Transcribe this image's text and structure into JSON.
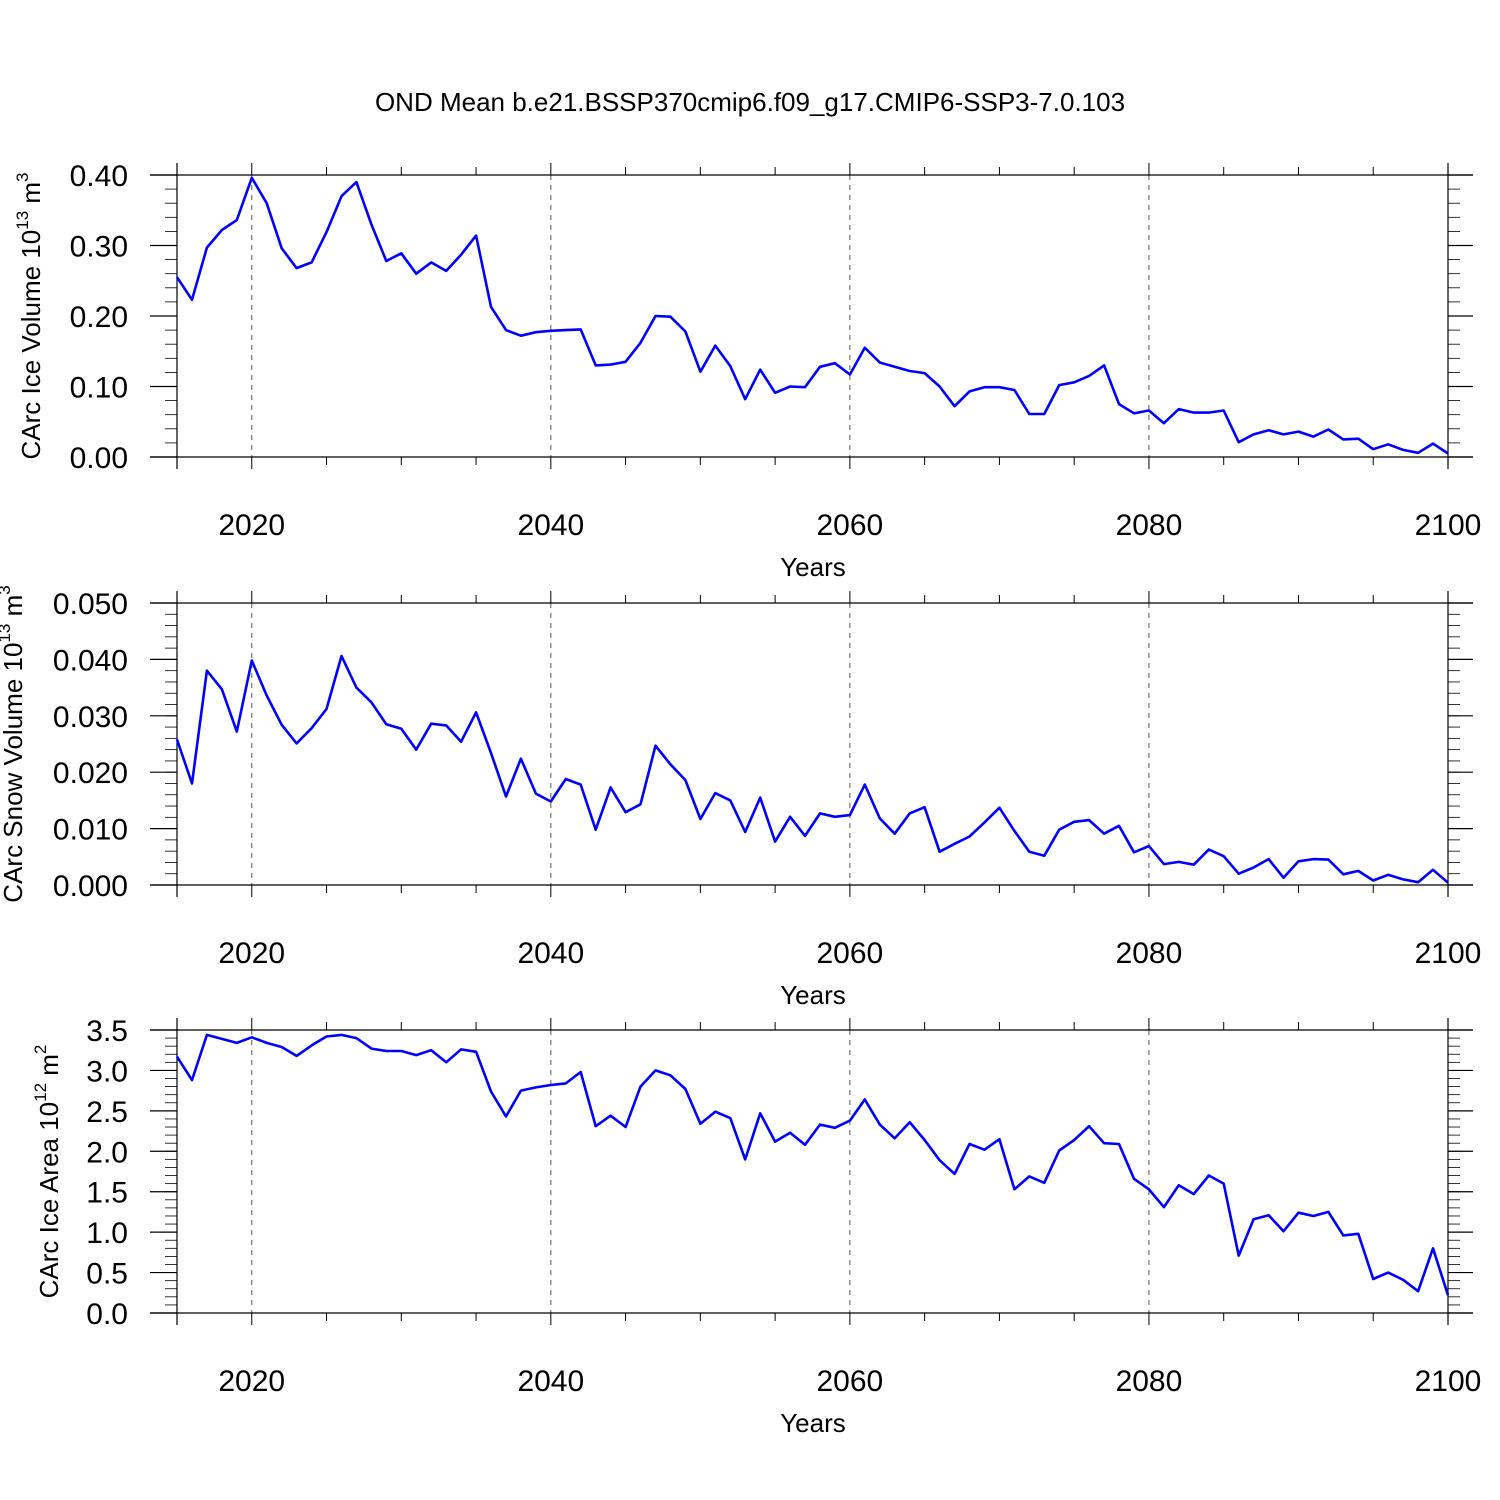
{
  "chart_data": {
    "title": "OND Mean b.e21.BSSP370cmip6.f09_g17.CMIP6-SSP3-7.0.103",
    "line_color": "#0000ff",
    "years": [
      2015,
      2016,
      2017,
      2018,
      2019,
      2020,
      2021,
      2022,
      2023,
      2024,
      2025,
      2026,
      2027,
      2028,
      2029,
      2030,
      2031,
      2032,
      2033,
      2034,
      2035,
      2036,
      2037,
      2038,
      2039,
      2040,
      2041,
      2042,
      2043,
      2044,
      2045,
      2046,
      2047,
      2048,
      2049,
      2050,
      2051,
      2052,
      2053,
      2054,
      2055,
      2056,
      2057,
      2058,
      2059,
      2060,
      2061,
      2062,
      2063,
      2064,
      2065,
      2066,
      2067,
      2068,
      2069,
      2070,
      2071,
      2072,
      2073,
      2074,
      2075,
      2076,
      2077,
      2078,
      2079,
      2080,
      2081,
      2082,
      2083,
      2084,
      2085,
      2086,
      2087,
      2088,
      2089,
      2090,
      2091,
      2092,
      2093,
      2094,
      2095,
      2096,
      2097,
      2098,
      2099,
      2100
    ],
    "panels": [
      {
        "type": "line",
        "ylabel_main": "CArc Ice Volume 10",
        "ylabel_exp": "13",
        "ylabel_unit": " m",
        "ylabel_unit_exp": "3",
        "xlabel": "Years",
        "xlim": [
          2015,
          2100
        ],
        "ylim": [
          0,
          0.4
        ],
        "yticks": [
          0,
          0.1,
          0.2,
          0.3,
          0.4
        ],
        "ytick_labels": [
          "0.00",
          "0.10",
          "0.20",
          "0.30",
          "0.40"
        ],
        "yminor": 0.02,
        "xticks": [
          2020,
          2040,
          2060,
          2080,
          2100
        ],
        "xtick_labels": [
          "2020",
          "2040",
          "2060",
          "2080",
          "2100"
        ],
        "values": [
          0.255,
          0.223,
          0.297,
          0.322,
          0.336,
          0.396,
          0.36,
          0.296,
          0.268,
          0.276,
          0.319,
          0.37,
          0.39,
          0.33,
          0.278,
          0.289,
          0.26,
          0.276,
          0.264,
          0.287,
          0.314,
          0.213,
          0.18,
          0.172,
          0.177,
          0.179,
          0.18,
          0.181,
          0.13,
          0.131,
          0.135,
          0.162,
          0.2,
          0.199,
          0.178,
          0.121,
          0.158,
          0.129,
          0.082,
          0.124,
          0.091,
          0.1,
          0.099,
          0.128,
          0.133,
          0.117,
          0.155,
          0.134,
          0.128,
          0.122,
          0.119,
          0.1,
          0.072,
          0.093,
          0.099,
          0.099,
          0.095,
          0.061,
          0.061,
          0.102,
          0.106,
          0.115,
          0.13,
          0.075,
          0.062,
          0.066,
          0.048,
          0.068,
          0.063,
          0.063,
          0.066,
          0.021,
          0.032,
          0.038,
          0.032,
          0.036,
          0.029,
          0.039,
          0.025,
          0.026,
          0.011,
          0.018,
          0.01,
          0.006,
          0.019,
          0.005
        ]
      },
      {
        "type": "line",
        "ylabel_main": "CArc Snow Volume 10",
        "ylabel_exp": "13",
        "ylabel_unit": " m",
        "ylabel_unit_exp": "3",
        "xlabel": "Years",
        "xlim": [
          2015,
          2100
        ],
        "ylim": [
          0,
          0.05
        ],
        "yticks": [
          0,
          0.01,
          0.02,
          0.03,
          0.04,
          0.05
        ],
        "ytick_labels": [
          "0.000",
          "0.010",
          "0.020",
          "0.030",
          "0.040",
          "0.050"
        ],
        "yminor": 0.002,
        "xticks": [
          2020,
          2040,
          2060,
          2080,
          2100
        ],
        "xtick_labels": [
          "2020",
          "2040",
          "2060",
          "2080",
          "2100"
        ],
        "values": [
          0.0258,
          0.018,
          0.038,
          0.0347,
          0.0272,
          0.0398,
          0.0336,
          0.0284,
          0.0251,
          0.0278,
          0.0312,
          0.0406,
          0.035,
          0.0324,
          0.0285,
          0.0277,
          0.024,
          0.0286,
          0.0283,
          0.0254,
          0.0306,
          0.0234,
          0.0157,
          0.0224,
          0.0162,
          0.0148,
          0.0188,
          0.0178,
          0.0098,
          0.0173,
          0.0129,
          0.0143,
          0.0247,
          0.0214,
          0.0186,
          0.0117,
          0.0163,
          0.015,
          0.0094,
          0.0155,
          0.0077,
          0.0121,
          0.0087,
          0.0127,
          0.0121,
          0.0124,
          0.0178,
          0.0118,
          0.0091,
          0.0127,
          0.0138,
          0.0059,
          0.0073,
          0.0086,
          0.0111,
          0.0137,
          0.0096,
          0.0059,
          0.0052,
          0.0098,
          0.0112,
          0.0115,
          0.0091,
          0.0105,
          0.0058,
          0.0069,
          0.0037,
          0.0041,
          0.0036,
          0.0063,
          0.0051,
          0.002,
          0.0031,
          0.0046,
          0.0013,
          0.0042,
          0.0046,
          0.0045,
          0.0019,
          0.0025,
          0.0008,
          0.0018,
          0.001,
          0.0005,
          0.0027,
          0.0004
        ]
      },
      {
        "type": "line",
        "ylabel_main": "CArc Ice Area 10",
        "ylabel_exp": "12",
        "ylabel_unit": " m",
        "ylabel_unit_exp": "2",
        "xlabel": "Years",
        "xlim": [
          2015,
          2100
        ],
        "ylim": [
          0,
          3.5
        ],
        "yticks": [
          0,
          0.5,
          1.0,
          1.5,
          2.0,
          2.5,
          3.0,
          3.5
        ],
        "ytick_labels": [
          "0.0",
          "0.5",
          "1.0",
          "1.5",
          "2.0",
          "2.5",
          "3.0",
          "3.5"
        ],
        "yminor": 0.1,
        "xticks": [
          2020,
          2040,
          2060,
          2080,
          2100
        ],
        "xtick_labels": [
          "2020",
          "2040",
          "2060",
          "2080",
          "2100"
        ],
        "values": [
          3.17,
          2.88,
          3.44,
          3.39,
          3.34,
          3.41,
          3.34,
          3.29,
          3.18,
          3.31,
          3.42,
          3.44,
          3.4,
          3.27,
          3.24,
          3.24,
          3.19,
          3.25,
          3.1,
          3.26,
          3.23,
          2.74,
          2.43,
          2.75,
          2.79,
          2.82,
          2.84,
          2.98,
          2.31,
          2.44,
          2.3,
          2.8,
          3.0,
          2.94,
          2.77,
          2.34,
          2.49,
          2.41,
          1.9,
          2.47,
          2.12,
          2.23,
          2.08,
          2.33,
          2.29,
          2.38,
          2.64,
          2.33,
          2.16,
          2.36,
          2.14,
          1.89,
          1.72,
          2.09,
          2.02,
          2.15,
          1.53,
          1.69,
          1.61,
          2.01,
          2.14,
          2.31,
          2.1,
          2.09,
          1.66,
          1.53,
          1.31,
          1.58,
          1.47,
          1.7,
          1.6,
          0.71,
          1.16,
          1.21,
          1.01,
          1.24,
          1.2,
          1.25,
          0.96,
          0.98,
          0.42,
          0.5,
          0.41,
          0.27,
          0.8,
          0.22
        ]
      }
    ]
  }
}
